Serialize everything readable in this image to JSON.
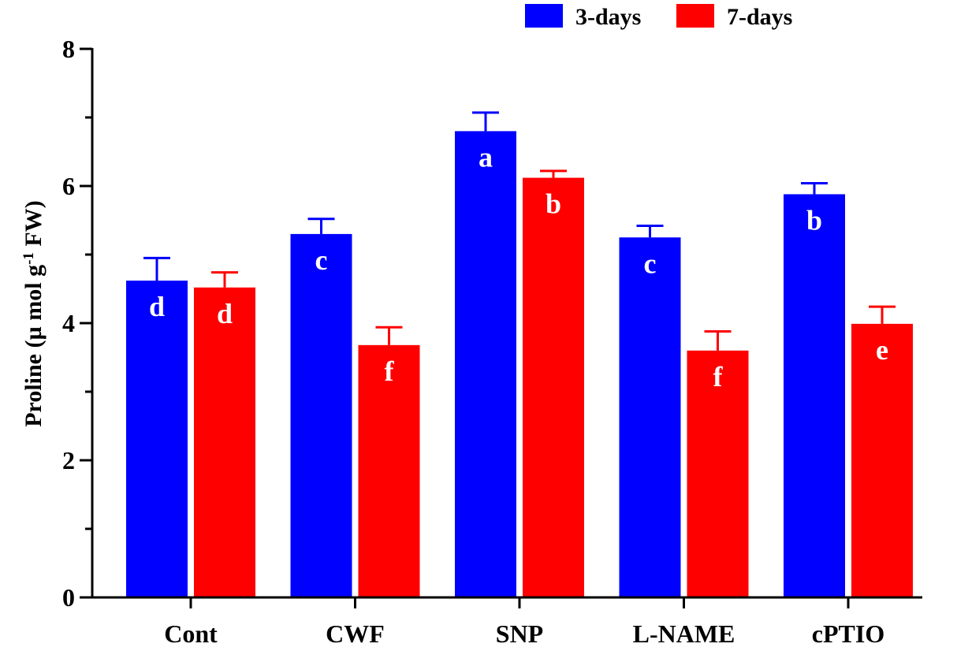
{
  "chart_data": {
    "type": "bar",
    "categories": [
      "Cont",
      "CWF",
      "SNP",
      "L-NAME",
      "cPTIO"
    ],
    "series": [
      {
        "name": "3-days",
        "color": "#0000ff",
        "values": [
          4.62,
          5.3,
          6.8,
          5.25,
          5.88
        ],
        "errors": [
          0.33,
          0.22,
          0.27,
          0.17,
          0.16
        ],
        "letters": [
          "d",
          "c",
          "a",
          "c",
          "b"
        ]
      },
      {
        "name": "7-days",
        "color": "#ff0000",
        "values": [
          4.52,
          3.68,
          6.12,
          3.6,
          3.99
        ],
        "errors": [
          0.22,
          0.26,
          0.1,
          0.28,
          0.25
        ],
        "letters": [
          "d",
          "f",
          "b",
          "f",
          "e"
        ]
      }
    ],
    "xlabel": "",
    "ylabel_parts": [
      "Proline (µ mol g",
      "-1",
      " FW)"
    ],
    "ylim": [
      0,
      8
    ],
    "yticks": [
      0,
      2,
      4,
      6,
      8
    ],
    "grid": false,
    "legend_position": "top-right"
  }
}
